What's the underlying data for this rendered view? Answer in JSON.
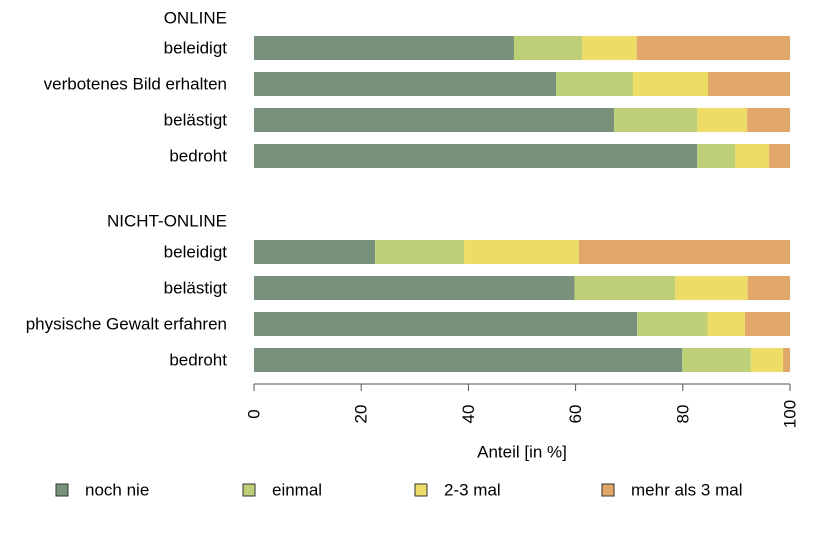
{
  "chart_data": {
    "type": "bar",
    "orientation": "horizontal",
    "stacked": true,
    "xlabel": "Anteil [in %]",
    "xlim": [
      0,
      100
    ],
    "xticks": [
      "0",
      "20",
      "40",
      "60",
      "80",
      "100"
    ],
    "grid": false,
    "legend_position": "bottom",
    "series": [
      {
        "name": "noch nie",
        "color": "#79917A"
      },
      {
        "name": "einmal",
        "color": "#BDD078"
      },
      {
        "name": "2-3 mal",
        "color": "#EDDC65"
      },
      {
        "name": "mehr als 3 mal",
        "color": "#E2A869"
      }
    ],
    "groups": [
      {
        "label": "ONLINE",
        "bars": [
          {
            "category": "beleidigt",
            "values": [
              48.5,
              12.7,
              10.2,
              28.6
            ]
          },
          {
            "category": "verbotenes Bild erhalten",
            "values": [
              56.4,
              14.3,
              14.0,
              15.3
            ]
          },
          {
            "category": "belästigt",
            "values": [
              67.2,
              15.5,
              9.3,
              8.0
            ]
          },
          {
            "category": "bedroht",
            "values": [
              82.7,
              7.1,
              6.3,
              3.9
            ]
          }
        ]
      },
      {
        "label": "NICHT-ONLINE",
        "bars": [
          {
            "category": "beleidigt",
            "values": [
              22.6,
              16.6,
              21.4,
              39.4
            ]
          },
          {
            "category": "belästigt",
            "values": [
              59.8,
              18.8,
              13.5,
              7.9
            ]
          },
          {
            "category": "physische Gewalt erfahren",
            "values": [
              71.5,
              13.1,
              7.0,
              8.4
            ]
          },
          {
            "category": "bedroht",
            "values": [
              79.9,
              12.8,
              6.0,
              1.3
            ]
          }
        ]
      }
    ]
  }
}
